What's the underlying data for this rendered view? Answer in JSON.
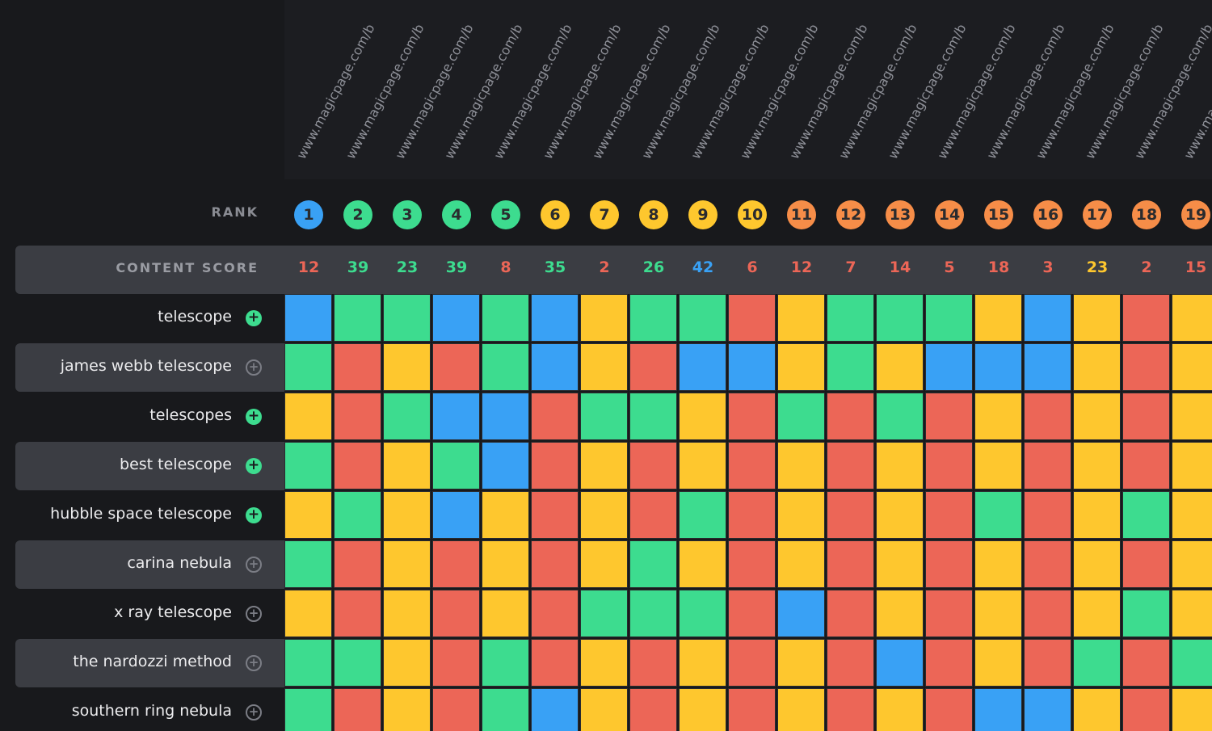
{
  "header": {
    "rank_label": "RANK",
    "content_score_label": "CONTENT SCORE"
  },
  "colors": {
    "G": "#3ddc8f",
    "R": "#ec6657",
    "Y": "#fec72e",
    "B": "#39a1f5"
  },
  "urls": [
    "www.magicpage.com/b",
    "www.magicpage.com/b",
    "www.magicpage.com/b",
    "www.magicpage.com/b",
    "www.magicpage.com/b",
    "www.magicpage.com/b",
    "www.magicpage.com/b",
    "www.magicpage.com/b",
    "www.magicpage.com/b",
    "www.magicpage.com/b",
    "www.magicpage.com/b",
    "www.magicpage.com/b",
    "www.magicpage.com/b",
    "www.magicpage.com/b",
    "www.magicpage.com/b",
    "www.magicpage.com/b",
    "www.magicpage.com/b",
    "www.magicpage.com/b",
    "www.magicpage.com/b"
  ],
  "ranks": [
    {
      "n": "1",
      "color": "#39a1f5"
    },
    {
      "n": "2",
      "color": "#3ddc8f"
    },
    {
      "n": "3",
      "color": "#3ddc8f"
    },
    {
      "n": "4",
      "color": "#3ddc8f"
    },
    {
      "n": "5",
      "color": "#3ddc8f"
    },
    {
      "n": "6",
      "color": "#fec72e"
    },
    {
      "n": "7",
      "color": "#fec72e"
    },
    {
      "n": "8",
      "color": "#fec72e"
    },
    {
      "n": "9",
      "color": "#fec72e"
    },
    {
      "n": "10",
      "color": "#fec72e"
    },
    {
      "n": "11",
      "color": "#f68d48"
    },
    {
      "n": "12",
      "color": "#f68d48"
    },
    {
      "n": "13",
      "color": "#f68d48"
    },
    {
      "n": "14",
      "color": "#f68d48"
    },
    {
      "n": "15",
      "color": "#f68d48"
    },
    {
      "n": "16",
      "color": "#f68d48"
    },
    {
      "n": "17",
      "color": "#f68d48"
    },
    {
      "n": "18",
      "color": "#f68d48"
    },
    {
      "n": "19",
      "color": "#f68d48"
    }
  ],
  "scores": [
    {
      "v": "12",
      "color": "#ec6657"
    },
    {
      "v": "39",
      "color": "#3ddc8f"
    },
    {
      "v": "23",
      "color": "#3ddc8f"
    },
    {
      "v": "39",
      "color": "#3ddc8f"
    },
    {
      "v": "8",
      "color": "#ec6657"
    },
    {
      "v": "35",
      "color": "#3ddc8f"
    },
    {
      "v": "2",
      "color": "#ec6657"
    },
    {
      "v": "26",
      "color": "#3ddc8f"
    },
    {
      "v": "42",
      "color": "#39a1f5"
    },
    {
      "v": "6",
      "color": "#ec6657"
    },
    {
      "v": "12",
      "color": "#ec6657"
    },
    {
      "v": "7",
      "color": "#ec6657"
    },
    {
      "v": "14",
      "color": "#ec6657"
    },
    {
      "v": "5",
      "color": "#ec6657"
    },
    {
      "v": "18",
      "color": "#ec6657"
    },
    {
      "v": "3",
      "color": "#ec6657"
    },
    {
      "v": "23",
      "color": "#fec72e"
    },
    {
      "v": "2",
      "color": "#ec6657"
    },
    {
      "v": "15",
      "color": "#ec6657"
    }
  ],
  "keywords": [
    {
      "label": "telescope",
      "active": true,
      "add_symbol": "+",
      "cells": "BGGBGBYGGRYGGGYBYRY"
    },
    {
      "label": "james webb telescope",
      "active": false,
      "add_symbol": "+",
      "cells": "GRYRGBYRBBYGYBBBYRY"
    },
    {
      "label": "telescopes",
      "active": true,
      "add_symbol": "+",
      "cells": "YRGBBRGGYRGRGRYRYRY"
    },
    {
      "label": "best telescope",
      "active": true,
      "add_symbol": "+",
      "cells": "GRYGBRYRYRYRYRYRYRY"
    },
    {
      "label": "hubble space telescope",
      "active": true,
      "add_symbol": "+",
      "cells": "YGYBYRYRGRYRYRGRYGY"
    },
    {
      "label": "carina nebula",
      "active": false,
      "add_symbol": "+",
      "cells": "GRYRYRYGYRYRYRYRYRY"
    },
    {
      "label": "x ray telescope",
      "active": false,
      "add_symbol": "+",
      "cells": "YRYRYRGGGRBRYRYRYGY"
    },
    {
      "label": "the nardozzi method",
      "active": false,
      "add_symbol": "+",
      "cells": "GGYRGRYRYRYRBRYRGRG"
    },
    {
      "label": "southern ring nebula",
      "active": false,
      "add_symbol": "+",
      "cells": "GRYRGBYRYRYRYRBBYRY"
    }
  ]
}
